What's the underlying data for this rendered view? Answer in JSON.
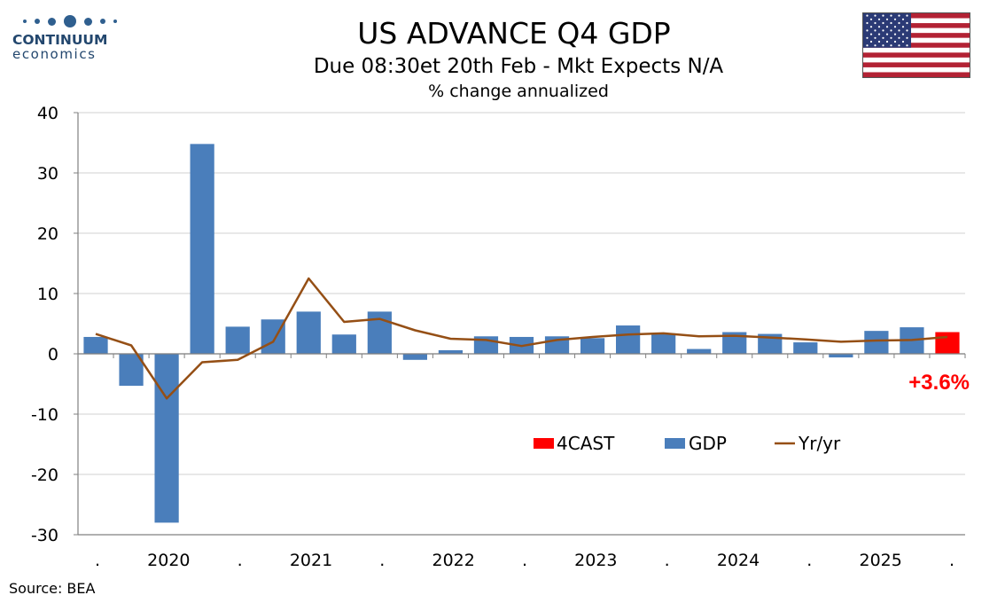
{
  "logo": {
    "name": "CONTINUUM",
    "sub": "economics"
  },
  "header": {
    "title": "US ADVANCE Q4  GDP",
    "subtitle": "Due 08:30et 20th Feb - Mkt Expects N/A",
    "units": "% change annualized"
  },
  "source": "Source: BEA",
  "colors": {
    "gdp": "#4a7ebb",
    "forecast": "#ff0000",
    "yoy": "#954f15",
    "grid": "#d9d9d9",
    "axis": "#808080"
  },
  "chart_data": {
    "type": "bar",
    "ylim": [
      -30,
      40
    ],
    "yticks": [
      -30,
      -20,
      -10,
      0,
      10,
      20,
      30,
      40
    ],
    "grid": true,
    "legend_position": "center-right",
    "legend": [
      "4CAST",
      "GDP",
      "Yr/yr"
    ],
    "xtick_labels": [
      ".",
      "2020",
      ".",
      "2021",
      ".",
      "2022",
      ".",
      "2023",
      ".",
      "2024",
      ".",
      "2025",
      "."
    ],
    "series": [
      {
        "name": "GDP",
        "kind": "bar",
        "values": [
          2.8,
          -5.3,
          -28.0,
          34.8,
          4.5,
          5.7,
          7.0,
          3.2,
          7.0,
          -1.0,
          0.6,
          2.9,
          2.8,
          2.9,
          2.6,
          4.7,
          3.4,
          0.8,
          3.6,
          3.3,
          1.9,
          -0.6,
          3.8,
          4.4,
          null
        ]
      },
      {
        "name": "4CAST",
        "kind": "bar",
        "values": [
          null,
          null,
          null,
          null,
          null,
          null,
          null,
          null,
          null,
          null,
          null,
          null,
          null,
          null,
          null,
          null,
          null,
          null,
          null,
          null,
          null,
          null,
          null,
          null,
          3.6
        ]
      },
      {
        "name": "Yr/yr",
        "kind": "line",
        "values": [
          3.3,
          1.4,
          -7.4,
          -1.4,
          -1.0,
          2.0,
          12.5,
          5.3,
          5.8,
          3.9,
          2.5,
          2.3,
          1.3,
          2.3,
          2.8,
          3.2,
          3.4,
          2.9,
          3.0,
          2.7,
          2.4,
          2.0,
          2.2,
          2.3,
          2.8
        ]
      }
    ],
    "annotation": "+3.6%"
  }
}
